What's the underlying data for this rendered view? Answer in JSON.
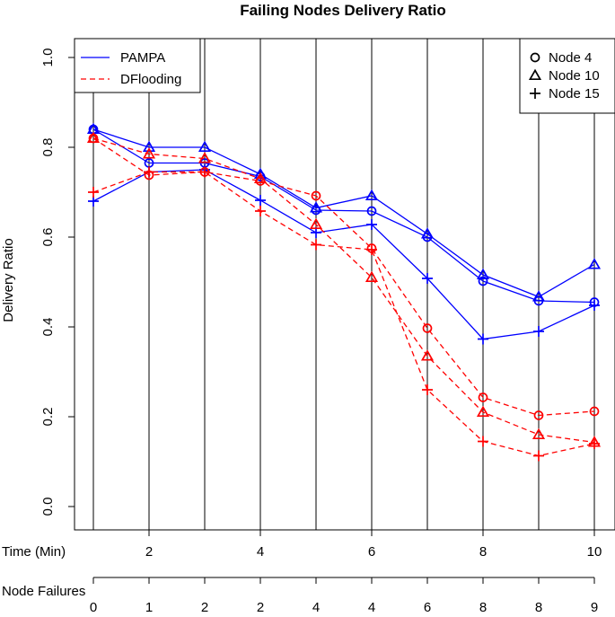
{
  "chart_data": {
    "type": "line",
    "title": "Failing Nodes Delivery Ratio",
    "xlabel": "Time (Min)",
    "ylabel": "Delivery Ratio",
    "x": [
      1,
      2,
      3,
      4,
      5,
      6,
      7,
      8,
      9,
      10
    ],
    "xlim": [
      0.65,
      10.35
    ],
    "ylim": [
      -0.04,
      1.04
    ],
    "x_ticks": [
      2,
      4,
      6,
      8,
      10
    ],
    "y_ticks": [
      0.0,
      0.2,
      0.4,
      0.6,
      0.8,
      1.0
    ],
    "y_tick_labels": [
      "0.0",
      "0.2",
      "0.4",
      "0.6",
      "0.8",
      "1.0"
    ],
    "vertical_gridlines_at": [
      1,
      2,
      3,
      4,
      5,
      6,
      7,
      8,
      9,
      10
    ],
    "secondary_axis": {
      "label": "Node Failures",
      "values": [
        "0",
        "1",
        "2",
        "2",
        "4",
        "4",
        "6",
        "8",
        "8",
        "9"
      ]
    },
    "series": [
      {
        "name": "PAMPA",
        "node": "Node 4",
        "marker": "circle",
        "style": "solid",
        "color": "#0000ff",
        "values": [
          0.84,
          0.765,
          0.765,
          0.735,
          0.66,
          0.658,
          0.6,
          0.502,
          0.458,
          0.455
        ]
      },
      {
        "name": "PAMPA",
        "node": "Node 10",
        "marker": "triangle",
        "style": "solid",
        "color": "#0000ff",
        "values": [
          0.84,
          0.8,
          0.8,
          0.74,
          0.665,
          0.692,
          0.607,
          0.516,
          0.467,
          0.539
        ]
      },
      {
        "name": "PAMPA",
        "node": "Node 15",
        "marker": "plus",
        "style": "solid",
        "color": "#0000ff",
        "values": [
          0.68,
          0.745,
          0.75,
          0.682,
          0.61,
          0.628,
          0.508,
          0.373,
          0.39,
          0.448
        ]
      },
      {
        "name": "DFlooding",
        "node": "Node 4",
        "marker": "circle",
        "style": "dashed",
        "color": "#ff0000",
        "values": [
          0.82,
          0.738,
          0.745,
          0.725,
          0.692,
          0.575,
          0.397,
          0.243,
          0.203,
          0.212
        ]
      },
      {
        "name": "DFlooding",
        "node": "Node 10",
        "marker": "triangle",
        "style": "dashed",
        "color": "#ff0000",
        "values": [
          0.82,
          0.785,
          0.775,
          0.73,
          0.628,
          0.51,
          0.335,
          0.21,
          0.16,
          0.143
        ]
      },
      {
        "name": "DFlooding",
        "node": "Node 15",
        "marker": "plus",
        "style": "dashed",
        "color": "#ff0000",
        "values": [
          0.7,
          0.745,
          0.745,
          0.658,
          0.583,
          0.572,
          0.26,
          0.145,
          0.113,
          0.14
        ]
      }
    ],
    "legend_left": {
      "position": "top-left",
      "entries": [
        {
          "label": "PAMPA",
          "color": "#0000ff",
          "style": "solid"
        },
        {
          "label": "DFlooding",
          "color": "#ff0000",
          "style": "dashed"
        }
      ]
    },
    "legend_right": {
      "position": "top-right",
      "entries": [
        {
          "label": "Node 4",
          "marker": "circle"
        },
        {
          "label": "Node 10",
          "marker": "triangle"
        },
        {
          "label": "Node 15",
          "marker": "plus"
        }
      ]
    }
  }
}
